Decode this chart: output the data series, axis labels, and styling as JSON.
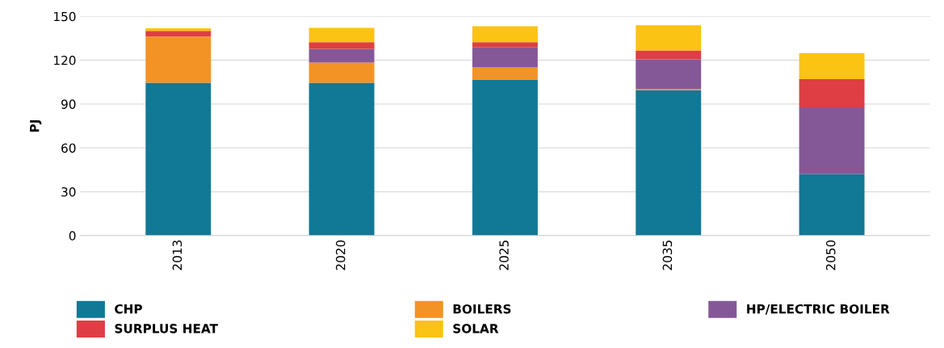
{
  "chart_data": {
    "type": "bar",
    "stacked": true,
    "ylabel": "PJ",
    "categories": [
      "2013",
      "2020",
      "2025",
      "2035",
      "2050"
    ],
    "series": [
      {
        "name": "CHP",
        "color": "#117896",
        "values": [
          104.6,
          104.6,
          106.8,
          99.6,
          42
        ]
      },
      {
        "name": "BOILERS",
        "color": "#f39325",
        "values": [
          31.6,
          13.8,
          8.3,
          0.8,
          0
        ]
      },
      {
        "name": "HP/ELECTRIC BOILER",
        "color": "#845897",
        "values": [
          0,
          9.4,
          13.9,
          20.2,
          45.1
        ]
      },
      {
        "name": "SURPLUS HEAT",
        "color": "#de3e44",
        "values": [
          3.9,
          4.5,
          3.3,
          6.1,
          20
        ]
      },
      {
        "name": "SOLAR",
        "color": "#fbc314",
        "values": [
          1.7,
          9.9,
          11,
          17.2,
          17.7
        ]
      }
    ],
    "ylim": [
      0,
      150
    ],
    "yticks": [
      0,
      30,
      60,
      90,
      120,
      150
    ],
    "grid": "y",
    "legend": "bottom"
  }
}
